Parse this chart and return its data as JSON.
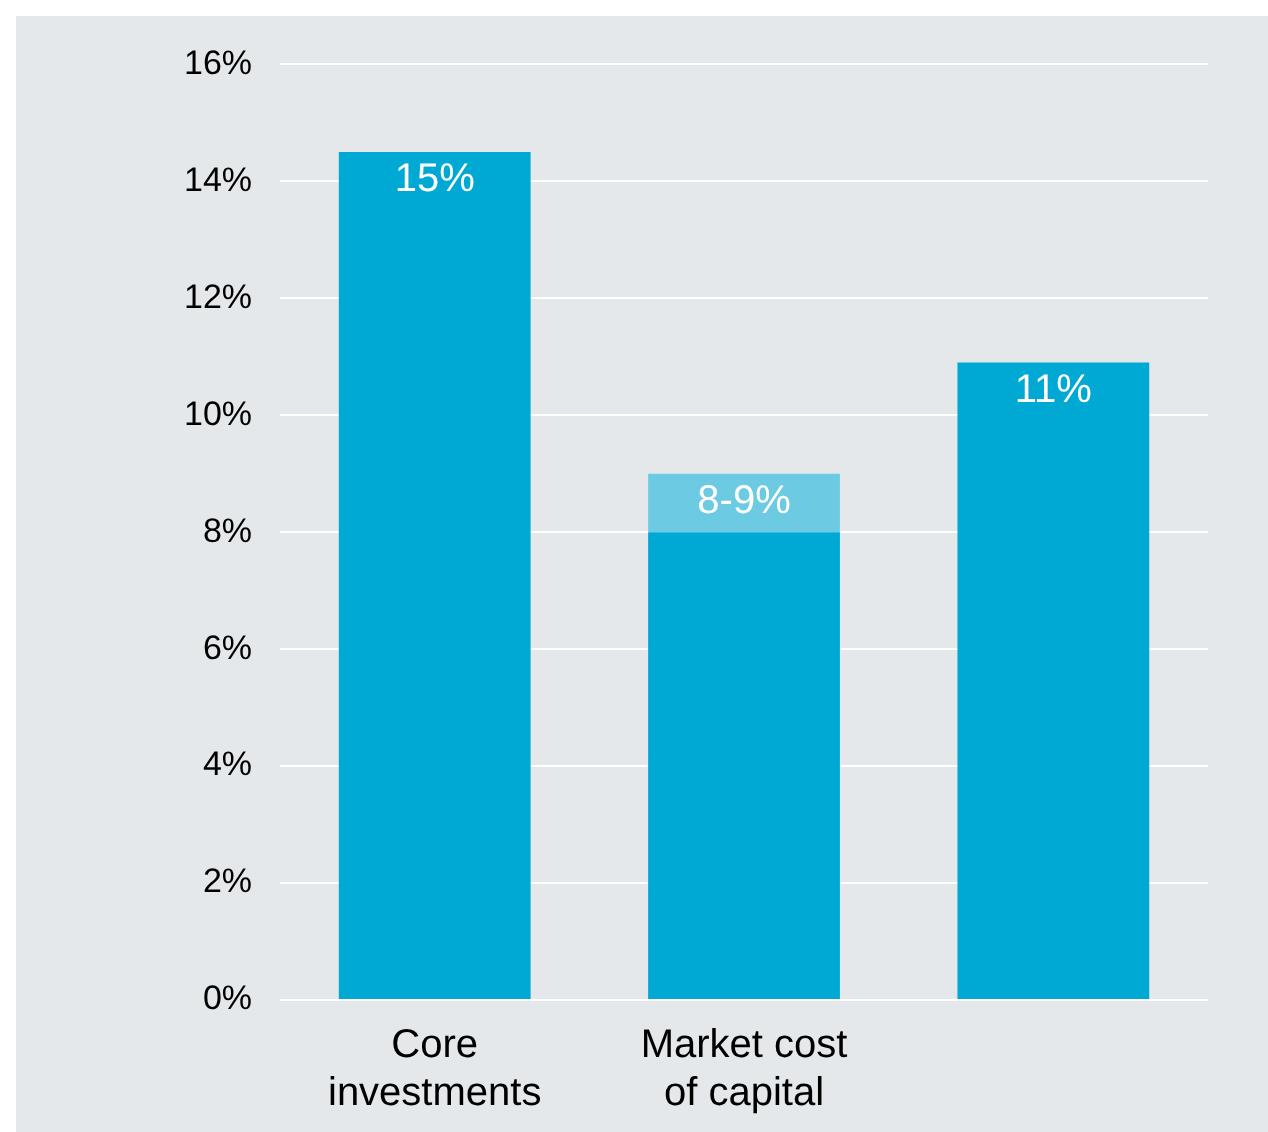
{
  "chart_data": {
    "type": "bar",
    "stacked": true,
    "categories": [
      "Core investments",
      "Market cost of capital",
      null
    ],
    "series": [
      {
        "color": "#00a9d4",
        "values": [
          14.5,
          8,
          10.9
        ],
        "value_labels": [
          "15%",
          null,
          "11%"
        ]
      },
      {
        "color": "#6ccbe2",
        "values": [
          0,
          1,
          0
        ]
      }
    ],
    "annotations": [
      {
        "text": "8-9%",
        "x": "Market cost of capital",
        "y": 9
      }
    ],
    "ylim": [
      0,
      16
    ],
    "yticks": [
      {
        "value": 0,
        "label": "0%"
      },
      {
        "value": 2,
        "label": "2%"
      },
      {
        "value": 4,
        "label": "4%"
      },
      {
        "value": 6,
        "label": "6%"
      },
      {
        "value": 8,
        "label": "8%"
      },
      {
        "value": 10,
        "label": "10%"
      },
      {
        "value": 12,
        "label": "12%"
      },
      {
        "value": 14,
        "label": "14%"
      },
      {
        "value": 16,
        "label": "16%"
      }
    ],
    "grid": "y",
    "legend": false
  }
}
